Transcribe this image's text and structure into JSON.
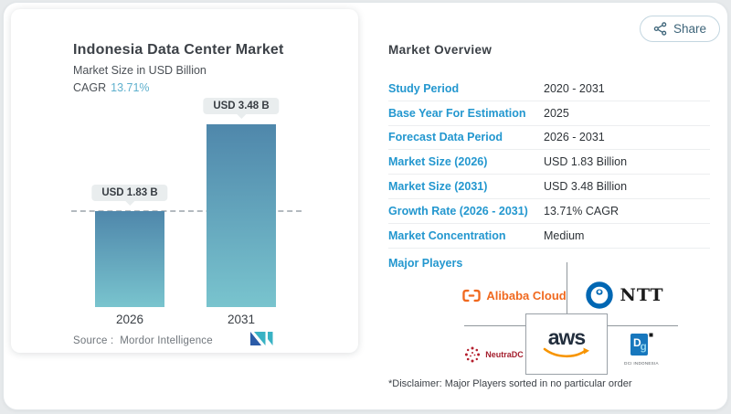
{
  "window": {
    "share_label": "Share"
  },
  "chart_card": {
    "title": "Indonesia Data Center Market",
    "subtitle": "Market Size in USD Billion",
    "cagr_label": "CAGR",
    "cagr_value": "13.71%",
    "source_label": "Source :",
    "source_name": "Mordor Intelligence"
  },
  "chart_data": {
    "type": "bar",
    "title": "Indonesia Data Center Market",
    "ylabel": "Market Size in USD Billion",
    "categories": [
      "2026",
      "2031"
    ],
    "values": [
      1.83,
      3.48
    ],
    "value_labels": [
      "USD 1.83 B",
      "USD 3.48 B"
    ],
    "cagr_percent": 13.71,
    "ylim": [
      0,
      3.48
    ],
    "grid": false,
    "reference_line_value": 1.83,
    "bar_color_top": "#4f87ab",
    "bar_color_bottom": "#79c4ce"
  },
  "overview": {
    "heading": "Market Overview",
    "rows": [
      {
        "label": "Study Period",
        "value": "2020 - 2031"
      },
      {
        "label": "Base Year For Estimation",
        "value": "2025"
      },
      {
        "label": "Forecast Data Period",
        "value": "2026 - 2031"
      },
      {
        "label": "Market Size (2026)",
        "value": "USD 1.83 Billion"
      },
      {
        "label": "Market Size (2031)",
        "value": "USD 3.48 Billion"
      },
      {
        "label": "Growth Rate (2026 - 2031)",
        "value": "13.71% CAGR"
      },
      {
        "label": "Market Concentration",
        "value": "Medium"
      }
    ],
    "major_players_label": "Major Players",
    "disclaimer": "*Disclaimer: Major Players sorted in no particular order"
  },
  "players": {
    "alibaba": "Alibaba Cloud",
    "ntt": "NTT",
    "neutradc": "NeutraDC",
    "aws": "aws",
    "dci": "DCI INDONESIA"
  },
  "colors": {
    "accent_blue": "#2397cf",
    "cagr_teal": "#5fb0cd",
    "bar_top": "#4f87ab",
    "bar_bottom": "#79c4ce",
    "alibaba_orange": "#f0691f",
    "ntt_blue": "#0067b3",
    "aws_text": "#232f3e",
    "aws_smile_orange": "#f79400",
    "neutradc_red": "#b51f2e",
    "dci_blue": "#1777bd",
    "share_text": "#3d6479"
  }
}
